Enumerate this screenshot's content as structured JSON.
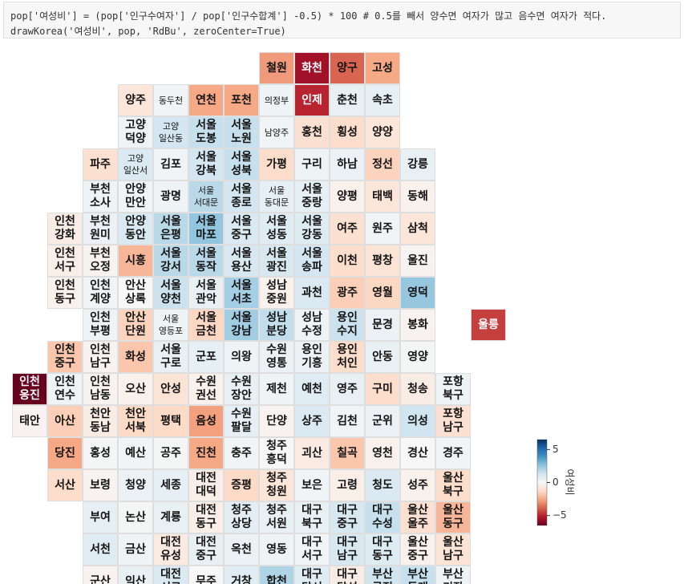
{
  "chart_data": {
    "type": "tilemap",
    "code": [
      "pop['여성비'] = (pop['인구수여자'] / pop['인구수합계'] -0.5) * 100 # 0.5를 빼서 양수면 여자가 많고 음수면 여자가 적다.",
      "drawKorea('여성비', pop, 'RdBu', zeroCenter=True)"
    ],
    "color_scale": "RdBu",
    "colorbar": {
      "label": "여성비",
      "lim": [
        -6.5,
        6.5
      ],
      "ticks": [
        5,
        0,
        {
          "value": -5,
          "label": "−5"
        }
      ]
    },
    "cells": [
      [
        null,
        null,
        null,
        null,
        null,
        null,
        null,
        "철원",
        "화천",
        "양구",
        "고성",
        null,
        null,
        null
      ],
      [
        null,
        null,
        null,
        "양주",
        "동두천",
        "연천",
        "포천",
        "의정부",
        "인제",
        "춘천",
        "속초",
        null,
        null,
        null
      ],
      [
        null,
        null,
        null,
        "고양\n덕양",
        "고양\n일산동",
        "서울\n도봉",
        "서울\n노원",
        "남양주",
        "홍천",
        "횡성",
        "양양",
        null,
        null,
        null
      ],
      [
        null,
        null,
        "파주",
        "고양\n일산서",
        "김포",
        "서울\n강북",
        "서울\n성북",
        "가평",
        "구리",
        "하남",
        "정선",
        "강릉",
        null,
        null
      ],
      [
        null,
        null,
        "부천\n소사",
        "안양\n만안",
        "광명",
        "서울\n서대문",
        "서울\n종로",
        "서울\n동대문",
        "서울\n중랑",
        "양평",
        "태백",
        "동해",
        null,
        null
      ],
      [
        null,
        "인천\n강화",
        "부천\n원미",
        "안양\n동안",
        "서울\n은평",
        "서울\n마포",
        "서울\n중구",
        "서울\n성동",
        "서울\n강동",
        "여주",
        "원주",
        "삼척",
        null,
        null
      ],
      [
        null,
        "인천\n서구",
        "부천\n오정",
        "시흥",
        "서울\n강서",
        "서울\n동작",
        "서울\n용산",
        "서울\n광진",
        "서울\n송파",
        "이천",
        "평창",
        "울진",
        null,
        null
      ],
      [
        null,
        "인천\n동구",
        "인천\n계양",
        "안산\n상록",
        "서울\n양천",
        "서울\n관악",
        "서울\n서초",
        "성남\n중원",
        "과천",
        "광주",
        "영월",
        "영덕",
        null,
        null
      ],
      [
        null,
        null,
        "인천\n부평",
        "안산\n단원",
        "서울\n영등포",
        "서울\n금천",
        "서울\n강남",
        "성남\n분당",
        "성남\n수정",
        "용인\n수지",
        "문경",
        "봉화",
        null,
        "울릉"
      ],
      [
        null,
        "인천\n중구",
        "인천\n남구",
        "화성",
        "서울\n구로",
        "군포",
        "의왕",
        "수원\n영통",
        "용인\n기흥",
        "용인\n처인",
        "안동",
        "영양",
        null,
        null
      ],
      [
        "인천\n옹진",
        "인천\n연수",
        "인천\n남동",
        "오산",
        "안성",
        "수원\n권선",
        "수원\n장안",
        "제천",
        "예천",
        "영주",
        "구미",
        "청송",
        "포항\n북구",
        null
      ],
      [
        "태안",
        "아산",
        "천안\n동남",
        "천안\n서북",
        "평택",
        "음성",
        "수원\n팔달",
        "단양",
        "상주",
        "김천",
        "군위",
        "의성",
        "포항\n남구",
        null
      ],
      [
        null,
        "당진",
        "홍성",
        "예산",
        "공주",
        "진천",
        "충주",
        "청주\n흥덕",
        "괴산",
        "칠곡",
        "영천",
        "경산",
        "경주",
        null
      ],
      [
        null,
        "서산",
        "보령",
        "청양",
        "세종",
        "대전\n대덕",
        "증평",
        "청주\n청원",
        "보은",
        "고령",
        "청도",
        "성주",
        "울산\n북구",
        null
      ],
      [
        null,
        null,
        "부여",
        "논산",
        "계룡",
        "대전\n동구",
        "청주\n상당",
        "청주\n서원",
        "대구\n북구",
        "대구\n중구",
        "대구\n수성",
        "울산\n울주",
        "울산\n동구",
        null
      ],
      [
        null,
        null,
        "서천",
        "금산",
        "대전\n유성",
        "대전\n중구",
        "옥천",
        "영동",
        "대구\n서구",
        "대구\n남구",
        "대구\n동구",
        "울산\n중구",
        "울산\n남구",
        null
      ],
      [
        null,
        null,
        "군산",
        "익산",
        "대전\n서구",
        "무주",
        "거창",
        "합천",
        "대구\n달서",
        "대구\n달성",
        "부산\n금정",
        "부산\n동래",
        "부산\n기장",
        null
      ]
    ],
    "values": [
      [
        null,
        null,
        null,
        null,
        null,
        null,
        null,
        -2.8,
        -5.5,
        -3.8,
        -2.5,
        null,
        null,
        null
      ],
      [
        null,
        null,
        null,
        -0.8,
        0.2,
        -2.5,
        -2.5,
        0.3,
        -5,
        0.5,
        0.6,
        null,
        null,
        null
      ],
      [
        null,
        null,
        null,
        0.3,
        1.2,
        1.5,
        1.5,
        0.2,
        -1,
        -1.2,
        -0.8,
        null,
        null,
        null
      ],
      [
        null,
        null,
        -1,
        1,
        0.2,
        1.2,
        1.5,
        -1.2,
        0.3,
        0.4,
        -1.5,
        0.5,
        null,
        null
      ],
      [
        null,
        null,
        0.3,
        0.2,
        0.3,
        1.8,
        1.2,
        0.6,
        0.6,
        -0.3,
        -0.8,
        -0.3,
        null,
        null
      ],
      [
        null,
        -0.5,
        0.4,
        1,
        1.8,
        2.6,
        1,
        0.8,
        0.9,
        -1,
        0.2,
        -0.8,
        null,
        null
      ],
      [
        null,
        -0.4,
        -0.2,
        -2.2,
        1.8,
        1.8,
        1.1,
        1.1,
        1.2,
        -1.2,
        -0.9,
        -0.2,
        null,
        null
      ],
      [
        null,
        -0.3,
        0.2,
        0,
        1.4,
        0.5,
        2.2,
        -0.3,
        1,
        -1.6,
        -1.4,
        2.5,
        null,
        null
      ],
      [
        null,
        null,
        0.3,
        -1.5,
        0.3,
        -1.4,
        2.3,
        1.6,
        0.3,
        1.4,
        0.4,
        -0.2,
        null,
        -4.5
      ],
      [
        null,
        -1.8,
        -0.2,
        -1.8,
        0.5,
        0.6,
        0.3,
        0.4,
        0.4,
        -1.2,
        0.5,
        0.1,
        null,
        null
      ],
      [
        -6.5,
        0.3,
        -0.2,
        -0.3,
        -0.9,
        -0.3,
        0.5,
        0.3,
        0.8,
        0.5,
        -1.2,
        -0.5,
        0.3,
        null
      ],
      [
        -0.2,
        -1.6,
        -0.5,
        -1.3,
        -1.3,
        -2.7,
        0.6,
        -0.2,
        1,
        0.2,
        0.4,
        1.3,
        -1,
        null
      ],
      [
        null,
        -2.5,
        0.1,
        0.2,
        0.1,
        -2.5,
        0.2,
        0,
        -0.6,
        -1.8,
        -0.3,
        0,
        0.2,
        null
      ],
      [
        null,
        -1.2,
        -0.2,
        0.4,
        0.6,
        -0.4,
        -1.3,
        -0.8,
        0.2,
        -0.4,
        1,
        -0.3,
        -1.2,
        null
      ],
      [
        null,
        null,
        0.6,
        0.1,
        0.5,
        -0.4,
        0.7,
        0.5,
        0.5,
        1.1,
        1.5,
        -1,
        -2.2,
        null
      ],
      [
        null,
        null,
        0.8,
        0.3,
        -0.6,
        0.5,
        0.4,
        0.3,
        0.2,
        1.1,
        0.9,
        -0.3,
        -0.9,
        null
      ],
      [
        null,
        null,
        -0.2,
        0.5,
        1,
        0,
        0.8,
        2,
        0.8,
        -0.5,
        1.3,
        1.5,
        0.3,
        null
      ]
    ]
  }
}
